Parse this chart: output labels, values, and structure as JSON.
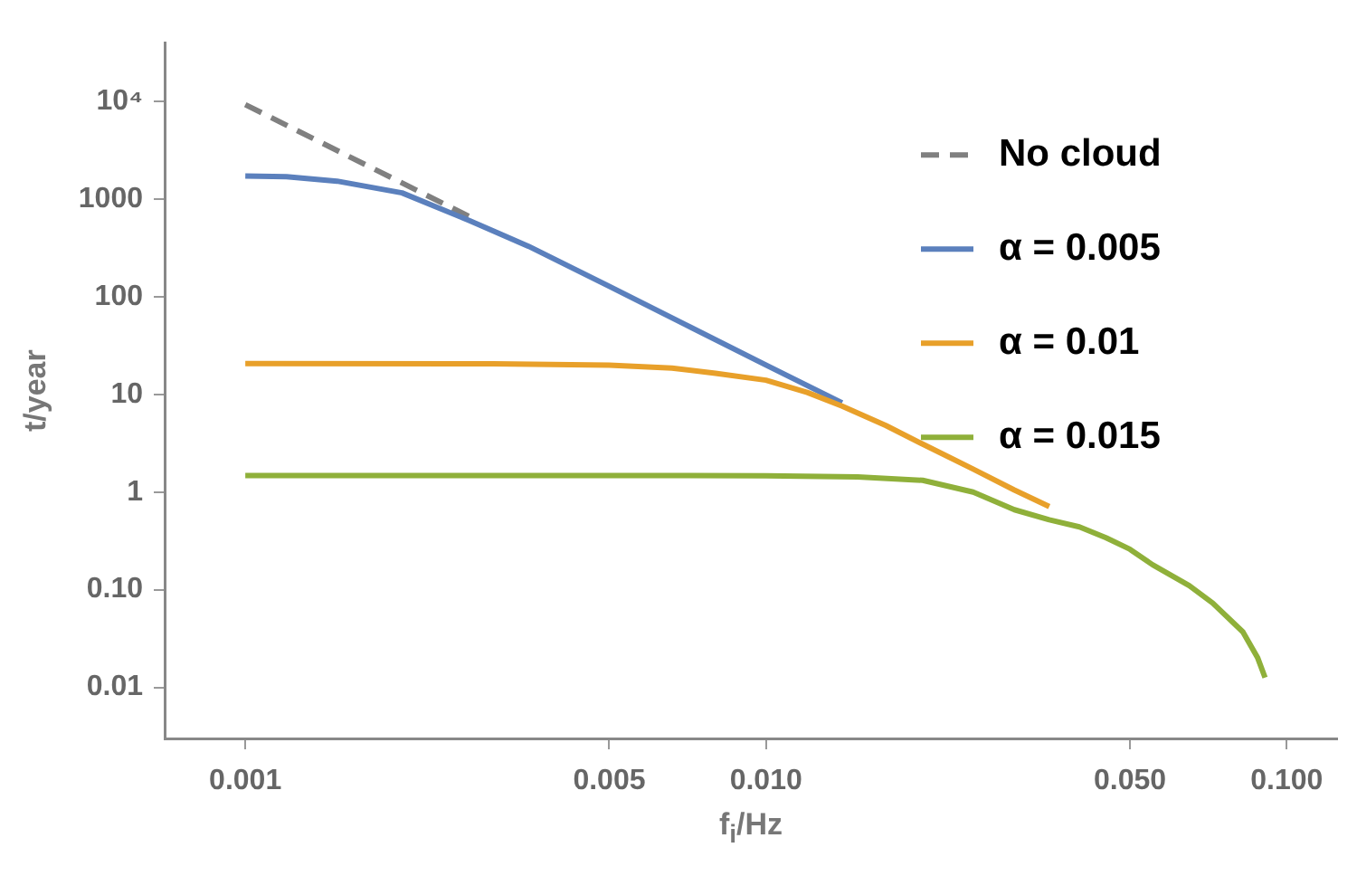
{
  "chart_data": {
    "type": "line",
    "xlabel": "f$_{i}$/Hz",
    "ylabel": "t/year",
    "log": "xy",
    "xlim": [
      0.0007,
      0.125
    ],
    "ylim": [
      0.003,
      40000
    ],
    "xticks": [
      0.001,
      0.005,
      {
        "value": 0.01,
        "label": "0.010"
      },
      {
        "value": 0.05,
        "label": "0.050"
      },
      {
        "value": 0.1,
        "label": "0.100"
      }
    ],
    "yticks": [
      {
        "value": 10000,
        "label": "10⁴"
      },
      1000,
      100,
      10,
      1,
      {
        "value": 0.1,
        "label": "0.10"
      },
      0.01
    ],
    "legend": "top right",
    "grid": false,
    "marker": "none",
    "series": [
      {
        "name": "No cloud",
        "color": "#808080",
        "line_style": "dashed",
        "x": [
          0.001,
          0.0015,
          0.002,
          0.0027
        ],
        "values": [
          9300,
          3150,
          1465,
          658
        ]
      },
      {
        "name": "α = 0.005",
        "color": "#5b80bd",
        "line_style": "solid",
        "x": [
          0.001,
          0.0012,
          0.0015,
          0.002,
          0.0027,
          0.0035,
          0.005,
          0.007,
          0.01,
          0.014
        ],
        "values": [
          1730,
          1700,
          1530,
          1160,
          600,
          329,
          128,
          52,
          20,
          8.2
        ]
      },
      {
        "name": "α = 0.01",
        "color": "#e8a02a",
        "line_style": "solid",
        "x": [
          0.001,
          0.003,
          0.005,
          0.0066,
          0.008,
          0.01,
          0.012,
          0.014,
          0.017,
          0.02,
          0.025,
          0.03,
          0.035
        ],
        "values": [
          20.7,
          20.6,
          20,
          18.6,
          16.5,
          14,
          10.5,
          7.6,
          4.8,
          3.1,
          1.72,
          1.05,
          0.71
        ]
      },
      {
        "name": "α = 0.015",
        "color": "#8fb03a",
        "line_style": "solid",
        "x": [
          0.001,
          0.005,
          0.01,
          0.015,
          0.02,
          0.025,
          0.03,
          0.035,
          0.04,
          0.045,
          0.05,
          0.0553,
          0.065,
          0.0721,
          0.0824,
          0.088,
          0.0909
        ],
        "values": [
          1.48,
          1.48,
          1.47,
          1.43,
          1.32,
          1.0,
          0.66,
          0.52,
          0.44,
          0.34,
          0.26,
          0.18,
          0.11,
          0.073,
          0.037,
          0.02,
          0.0126
        ]
      }
    ]
  }
}
